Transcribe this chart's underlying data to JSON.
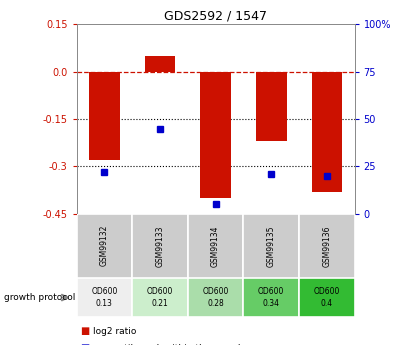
{
  "title": "GDS2592 / 1547",
  "samples": [
    "GSM99132",
    "GSM99133",
    "GSM99134",
    "GSM99135",
    "GSM99136"
  ],
  "log2_ratio": [
    -0.28,
    0.05,
    -0.4,
    -0.22,
    -0.38
  ],
  "percentile_rank": [
    22,
    45,
    5,
    21,
    20
  ],
  "ylim": [
    -0.45,
    0.15
  ],
  "yticks_left": [
    0.15,
    0.0,
    -0.15,
    -0.3,
    -0.45
  ],
  "yticks_right_vals": [
    100,
    75,
    50,
    25,
    0
  ],
  "yticks_right_pos": [
    0.15,
    0.0,
    -0.15,
    -0.3,
    -0.45
  ],
  "bar_color": "#cc1100",
  "dot_color": "#0000cc",
  "bar_width": 0.55,
  "growth_protocol_labels": [
    "OD600\n0.13",
    "OD600\n0.21",
    "OD600\n0.28",
    "OD600\n0.34",
    "OD600\n0.4"
  ],
  "growth_colors": [
    "#eeeeee",
    "#cceecc",
    "#aaddaa",
    "#66cc66",
    "#33bb33"
  ],
  "hline_color": "#cc1100",
  "dotted_line_color": "#000000",
  "background_color": "#ffffff",
  "plot_bg_color": "#ffffff",
  "tick_label_color_left": "#cc1100",
  "tick_label_color_right": "#0000cc",
  "label_bg": "#cccccc"
}
